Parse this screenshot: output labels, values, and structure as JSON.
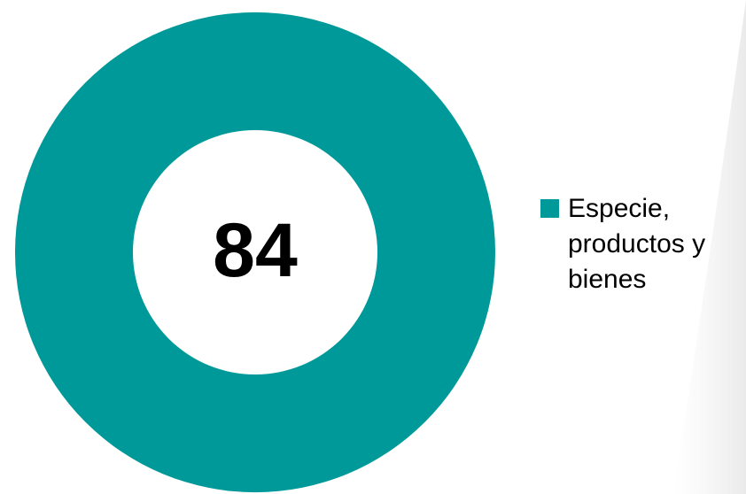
{
  "chart_data": {
    "type": "pie",
    "donut": true,
    "center_label": "84",
    "series": [
      {
        "name": "Especie, productos y bienes",
        "value": 84,
        "color": "#009999"
      }
    ],
    "legend": "right"
  }
}
